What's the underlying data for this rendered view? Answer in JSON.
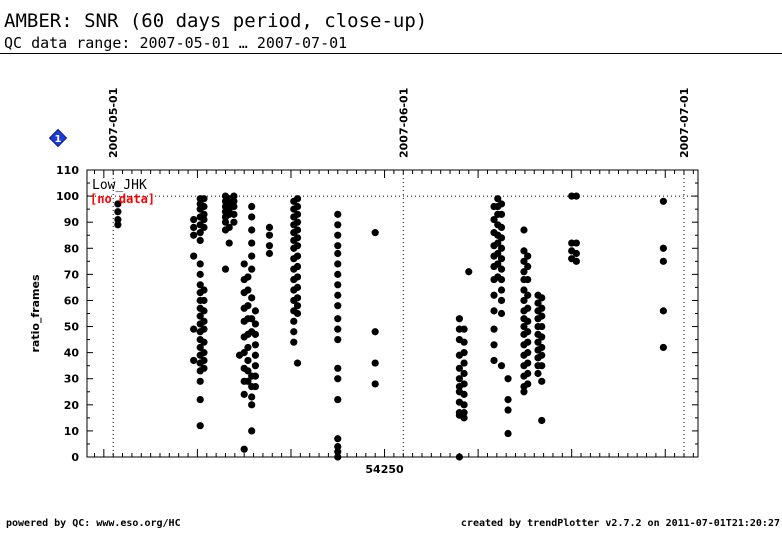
{
  "header": {
    "title": "AMBER: SNR (60 days period, close-up)",
    "subtitle": "QC data range: 2007-05-01 … 2007-07-01"
  },
  "footer": {
    "left": "powered by QC: www.eso.org/HC",
    "right": "created by trendPlotter v2.7.2 on 2011-07-01T21:20:27"
  },
  "marker_badge": "1",
  "chart_data": {
    "type": "scatter",
    "ylabel": "ratio_frames",
    "xlabel": "",
    "series_label": "Low_JHK",
    "no_data_label": "[no data]",
    "x_axis": {
      "label_tick": "54250",
      "tick_label_mjd": 54250,
      "xlim": [
        54218.2,
        54283.5
      ]
    },
    "ylim": [
      0,
      110
    ],
    "yticks": [
      0,
      10,
      20,
      30,
      40,
      50,
      60,
      70,
      80,
      90,
      100,
      110
    ],
    "reference_line_y": 100,
    "date_markers": [
      {
        "label": "2007-05-01",
        "mjd": 54221
      },
      {
        "label": "2007-06-01",
        "mjd": 54252
      },
      {
        "label": "2007-07-01",
        "mjd": 54282
      }
    ],
    "points": [
      {
        "x": 54221.5,
        "y": [
          97,
          94,
          91,
          89
        ]
      },
      {
        "x": 54229.6,
        "y": [
          91,
          88,
          85,
          77,
          49,
          37
        ]
      },
      {
        "x": 54230.3,
        "y": [
          99,
          97,
          95,
          92,
          89,
          86,
          83,
          74,
          70,
          66,
          63,
          60,
          57,
          54,
          51,
          48,
          45,
          42,
          39,
          36,
          33,
          29,
          22,
          12
        ]
      },
      {
        "x": 54230.7,
        "y": [
          99,
          96,
          93,
          91,
          88,
          64,
          60,
          56,
          52,
          49,
          44,
          40,
          37,
          34
        ]
      },
      {
        "x": 54233.0,
        "y": [
          100,
          98,
          96,
          94,
          92,
          90,
          87,
          72
        ]
      },
      {
        "x": 54233.4,
        "y": [
          99,
          97,
          95,
          93,
          88,
          82
        ]
      },
      {
        "x": 54233.9,
        "y": [
          100,
          98,
          96,
          93,
          90
        ]
      },
      {
        "x": 54234.5,
        "y": [
          39
        ]
      },
      {
        "x": 54235.0,
        "y": [
          74,
          68,
          63,
          57,
          52,
          46,
          40,
          34,
          29,
          24,
          3
        ]
      },
      {
        "x": 54235.4,
        "y": [
          69,
          64,
          58,
          53,
          47,
          42,
          37,
          33,
          29
        ]
      },
      {
        "x": 54235.8,
        "y": [
          96,
          92,
          87,
          82,
          77,
          72,
          61,
          53,
          48,
          31,
          27,
          23,
          20,
          10
        ]
      },
      {
        "x": 54236.2,
        "y": [
          56,
          51,
          47,
          43,
          39,
          35,
          31,
          27
        ]
      },
      {
        "x": 54237.7,
        "y": [
          88,
          85,
          81,
          78
        ]
      },
      {
        "x": 54240.3,
        "y": [
          98,
          95,
          92,
          89,
          86,
          83,
          80,
          76,
          72,
          68,
          64,
          60,
          56,
          52,
          48,
          44
        ]
      },
      {
        "x": 54240.7,
        "y": [
          99,
          96,
          93,
          90,
          87,
          84,
          81,
          77,
          73,
          69,
          65,
          61,
          58,
          55,
          36
        ]
      },
      {
        "x": 54245.0,
        "y": [
          93,
          89,
          85,
          81,
          78,
          74,
          70,
          66,
          62,
          58,
          53,
          49,
          45,
          34,
          30,
          22,
          7,
          4,
          2,
          0
        ]
      },
      {
        "x": 54249.0,
        "y": [
          86,
          48,
          36,
          28
        ]
      },
      {
        "x": 54258.0,
        "y": [
          53,
          49,
          45,
          39,
          34,
          30,
          27,
          25,
          21,
          17,
          16,
          0
        ]
      },
      {
        "x": 54258.5,
        "y": [
          49,
          44,
          40,
          36,
          32,
          28,
          24,
          20,
          17,
          15
        ]
      },
      {
        "x": 54259.0,
        "y": [
          71
        ]
      },
      {
        "x": 54261.7,
        "y": [
          96,
          91,
          86,
          81,
          77,
          73,
          68,
          62,
          56,
          49,
          43,
          37
        ]
      },
      {
        "x": 54262.1,
        "y": [
          99,
          96,
          93,
          89,
          85,
          82,
          78,
          74,
          69
        ]
      },
      {
        "x": 54262.5,
        "y": [
          97,
          93,
          88,
          84,
          80,
          76,
          72,
          68,
          64,
          60,
          55,
          35
        ]
      },
      {
        "x": 54263.2,
        "y": [
          30,
          22,
          18,
          9
        ]
      },
      {
        "x": 54264.9,
        "y": [
          87,
          79,
          75,
          71,
          68,
          64,
          60,
          56,
          53,
          50,
          47,
          43,
          39,
          35,
          31,
          27,
          25
        ]
      },
      {
        "x": 54265.3,
        "y": [
          77,
          73,
          68,
          62,
          57,
          52,
          48,
          44,
          40,
          36,
          32,
          28
        ]
      },
      {
        "x": 54266.4,
        "y": [
          62,
          59,
          56,
          53,
          50,
          47,
          44,
          41,
          38,
          35,
          32
        ]
      },
      {
        "x": 54266.8,
        "y": [
          61,
          57,
          54,
          50,
          46,
          42,
          39,
          35,
          29,
          14
        ]
      },
      {
        "x": 54270.0,
        "y": [
          100,
          82,
          79,
          76
        ]
      },
      {
        "x": 54270.5,
        "y": [
          100,
          82,
          78,
          75
        ]
      },
      {
        "x": 54279.8,
        "y": [
          98,
          80,
          75,
          56,
          42
        ]
      }
    ]
  }
}
